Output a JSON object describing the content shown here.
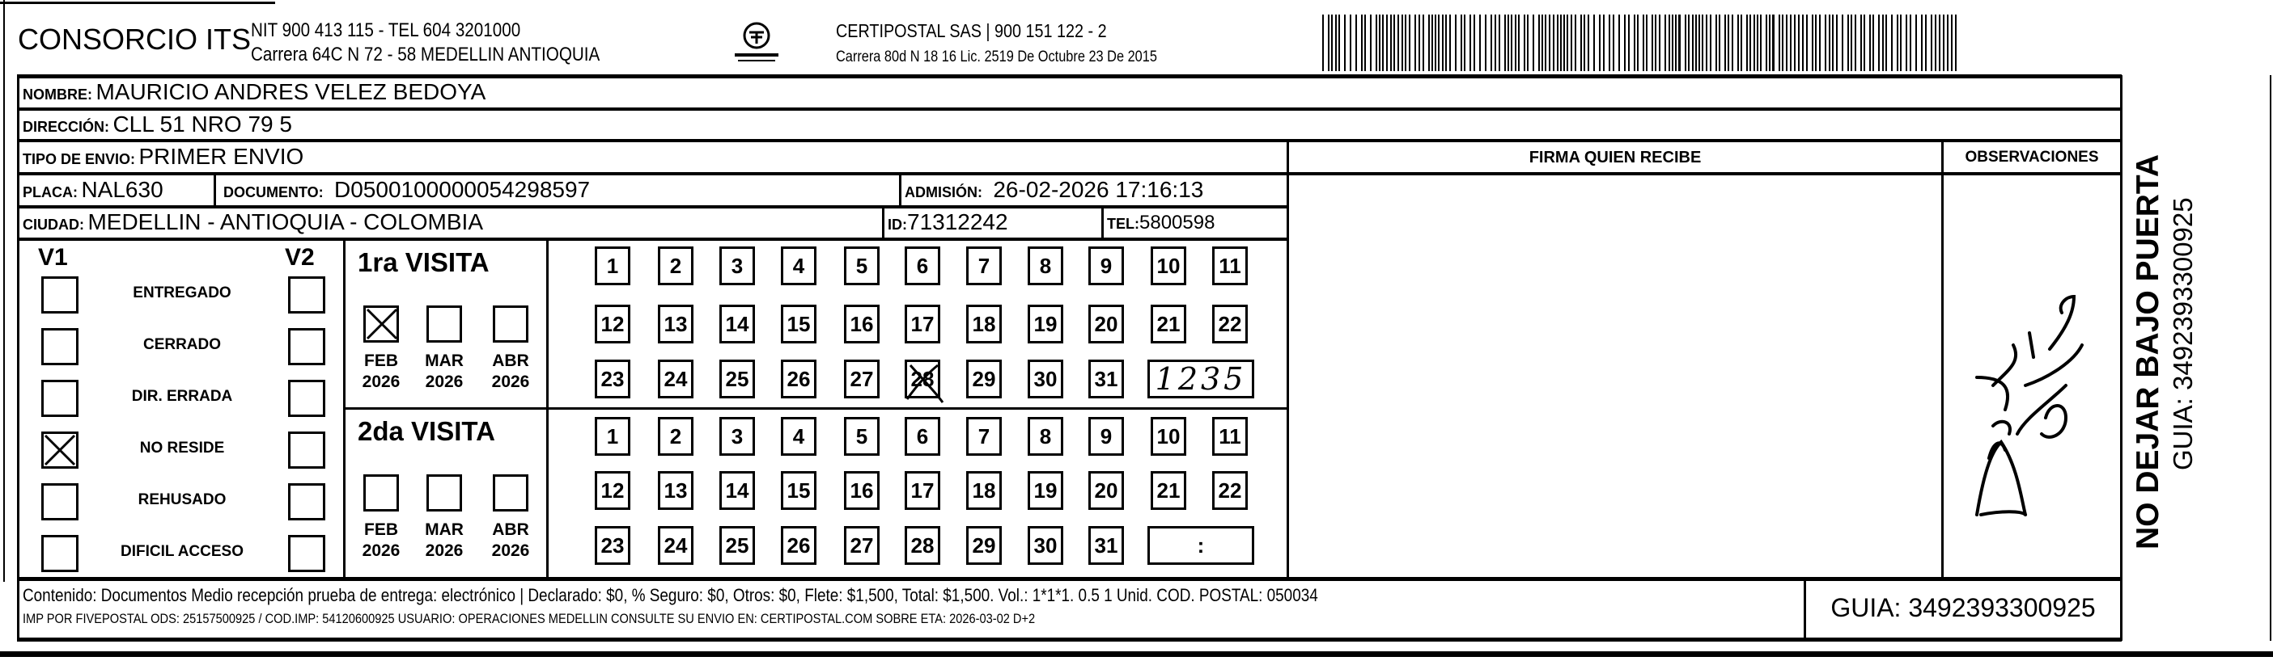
{
  "header": {
    "company": "CONSORCIO ITS",
    "company_line1": "NIT 900 413 115 - TEL 604 3201000",
    "company_line2": "Carrera 64C N 72 - 58 MEDELLIN ANTIOQUIA",
    "logo_text": "CERTIPOSTAL",
    "carrier_line1": "CERTIPOSTAL SAS | 900 151 122 - 2",
    "carrier_line2": "Carrera 80d N 18 16  Lic. 2519 De Octubre 23 De 2015"
  },
  "recipient": {
    "nombre_label": "NOMBRE:",
    "nombre": "MAURICIO ANDRES VELEZ BEDOYA",
    "direccion_label": "DIRECCIÓN:",
    "direccion": "CLL 51 NRO 79 5",
    "tipo_label": "TIPO DE ENVIO:",
    "tipo": "PRIMER ENVIO",
    "placa_label": "PLACA:",
    "placa": "NAL630",
    "documento_label": "DOCUMENTO:",
    "documento": "D0500100000054298597",
    "admision_label": "ADMISIÓN:",
    "admision": "26-02-2026 17:16:13",
    "ciudad_label": "CIUDAD:",
    "ciudad": "MEDELLIN - ANTIOQUIA - COLOMBIA",
    "id_label": "ID:",
    "id": "71312242",
    "tel_label": "TEL:",
    "tel": "5800598"
  },
  "firma_header": "FIRMA QUIEN RECIBE",
  "observaciones_header": "OBSERVACIONES",
  "status": {
    "v1_label": "V1",
    "v2_label": "V2",
    "items": [
      {
        "label": "ENTREGADO",
        "v1": false,
        "v2": false
      },
      {
        "label": "CERRADO",
        "v1": false,
        "v2": false
      },
      {
        "label": "DIR. ERRADA",
        "v1": false,
        "v2": false
      },
      {
        "label": "NO RESIDE",
        "v1": true,
        "v2": false
      },
      {
        "label": "REHUSADO",
        "v1": false,
        "v2": false
      },
      {
        "label": "DIFICIL ACCESO",
        "v1": false,
        "v2": false
      }
    ]
  },
  "visits": [
    {
      "title": "1ra VISITA",
      "months": [
        {
          "m": "FEB",
          "y": "2026",
          "checked": true
        },
        {
          "m": "MAR",
          "y": "2026",
          "checked": false
        },
        {
          "m": "ABR",
          "y": "2026",
          "checked": false
        }
      ],
      "marked_day": 28,
      "time": "1235"
    },
    {
      "title": "2da VISITA",
      "months": [
        {
          "m": "FEB",
          "y": "2026",
          "checked": false
        },
        {
          "m": "MAR",
          "y": "2026",
          "checked": false
        },
        {
          "m": "ABR",
          "y": "2026",
          "checked": false
        }
      ],
      "marked_day": null,
      "time": ":"
    }
  ],
  "footer": {
    "line1": "Contenido: Documentos Medio recepción prueba de entrega: electrónico | Declarado: $0, % Seguro: $0, Otros: $0, Flete: $1,500, Total: $1,500. Vol.: 1*1*1. 0.5  1 Unid. COD. POSTAL: 050034",
    "line2": "IMP POR FIVEPOSTAL ODS: 25157500925 / COD.IMP: 54120600925 USUARIO: OPERACIONES MEDELLIN CONSULTE SU ENVIO EN: CERTIPOSTAL.COM SOBRE ETA: 2026-03-02 D+2",
    "guia": "GUIA: 3492393300925"
  },
  "side": {
    "notice": "NO DEJAR BAJO PUERTA",
    "guia": "GUIA: 3492393300925"
  }
}
